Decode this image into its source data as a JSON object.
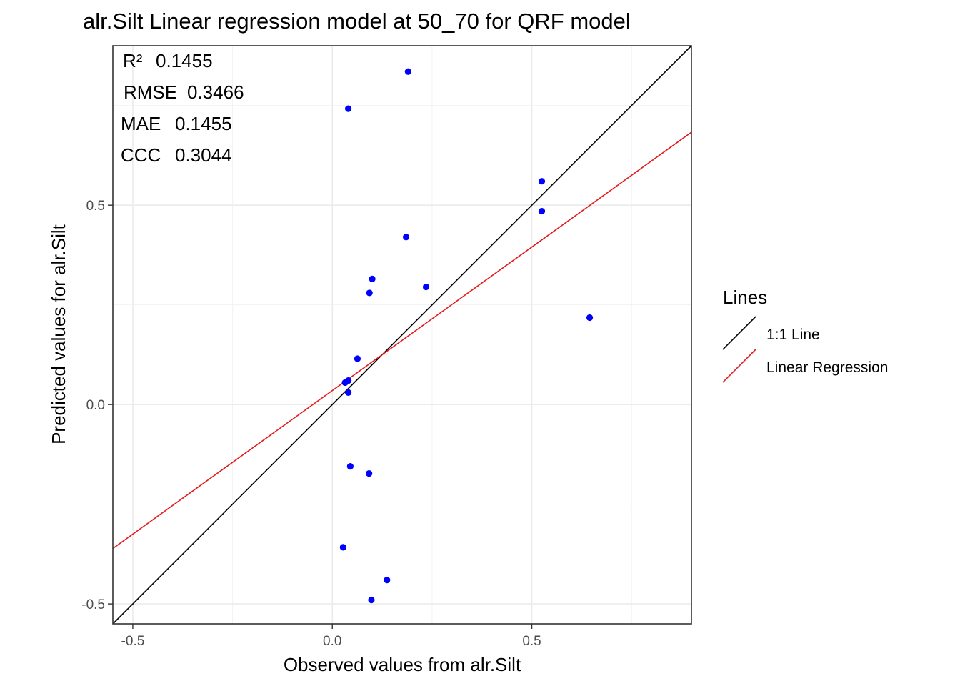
{
  "chart_data": {
    "type": "scatter",
    "title": "alr.Silt  Linear regression model at  50_70  for  QRF  model",
    "xlabel": "Observed values from alr.Silt",
    "ylabel": "Predicted values for alr.Silt",
    "xlim": [
      -0.55,
      0.9
    ],
    "ylim": [
      -0.55,
      0.9
    ],
    "x_ticks": [
      -0.5,
      0.0,
      0.5
    ],
    "x_tick_labels": [
      "-0.5",
      "0.0",
      "0.5"
    ],
    "y_ticks": [
      -0.5,
      0.0,
      0.5
    ],
    "y_tick_labels": [
      "-0.5",
      "0.0",
      "0.5"
    ],
    "grid": true,
    "points": {
      "color": "#0000ff",
      "x": [
        0.19,
        0.04,
        0.525,
        0.525,
        0.185,
        0.1,
        0.235,
        0.093,
        0.645,
        0.063,
        0.032,
        0.04,
        0.04,
        0.045,
        0.092,
        0.027,
        0.137,
        0.098
      ],
      "y": [
        0.835,
        0.742,
        0.56,
        0.485,
        0.42,
        0.315,
        0.295,
        0.28,
        0.218,
        0.115,
        0.055,
        0.06,
        0.03,
        -0.155,
        -0.173,
        -0.358,
        -0.44,
        -0.49
      ]
    },
    "lines": [
      {
        "name": "1:1 Line",
        "color": "#000000",
        "slope": 1,
        "intercept": 0
      },
      {
        "name": "Linear Regression",
        "color": "#e41a1c",
        "slope": 0.72,
        "intercept": 0.035
      }
    ],
    "stats": [
      {
        "label": "R²",
        "value": "0.1455"
      },
      {
        "label": "RMSE",
        "value": "0.3466"
      },
      {
        "label": "MAE",
        "value": "0.1455"
      },
      {
        "label": "CCC",
        "value": "0.3044"
      }
    ],
    "legend": {
      "title": "Lines",
      "position": "right",
      "entries": [
        "1:1 Line",
        "Linear Regression"
      ]
    }
  }
}
